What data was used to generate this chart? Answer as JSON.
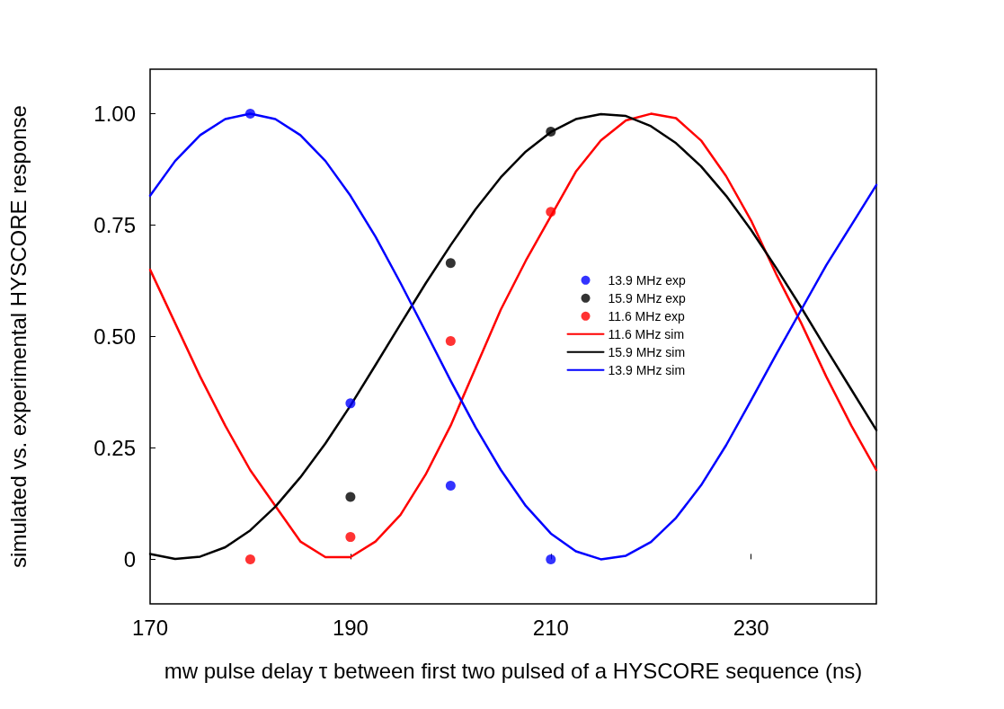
{
  "chart_data": {
    "type": "line",
    "xlabel": "mw pulse delay τ between first two pulsed of a HYSCORE sequence (ns)",
    "ylabel": "simulated vs. experimental HYSCORE response",
    "xlim": [
      170,
      242.5
    ],
    "xticks": [
      170,
      190,
      210,
      230
    ],
    "ylim": [
      -0.1,
      1.1
    ],
    "yticks": [
      0,
      {
        "value": 0.25,
        "label": "0.25"
      },
      {
        "value": 0.5,
        "label": "0.50"
      },
      {
        "value": 0.75,
        "label": "0.75"
      },
      {
        "value": 1,
        "label": "1.00"
      }
    ],
    "grid": false,
    "legend": "right",
    "line_style": "solid",
    "series": [
      {
        "name": "13.9 MHz exp",
        "type": "scatter",
        "marker": "circle",
        "color": "#0000ff",
        "x": [
          180,
          190,
          200,
          210
        ],
        "values": [
          1.0,
          0.35,
          0.165,
          0.0
        ]
      },
      {
        "name": "15.9 MHz exp",
        "type": "scatter",
        "marker": "circle",
        "color": "#000000",
        "x": [
          190,
          200,
          210
        ],
        "values": [
          0.14,
          0.665,
          0.96
        ]
      },
      {
        "name": "11.6 MHz exp",
        "type": "scatter",
        "marker": "circle",
        "color": "#ff0000",
        "x": [
          180,
          190,
          200,
          210
        ],
        "values": [
          0.0,
          0.05,
          0.49,
          0.78
        ]
      },
      {
        "name": "11.6 MHz sim",
        "color": "#ff0000",
        "x": [
          170,
          172.5,
          175,
          177.5,
          180,
          182.5,
          185,
          187.5,
          190,
          192.5,
          195,
          197.5,
          200,
          202.5,
          205,
          207.5,
          210,
          212.5,
          215,
          217.5,
          220,
          222.5,
          225,
          227.5,
          230,
          232.5,
          235,
          237.5,
          240,
          242.5
        ],
        "values": [
          0.65,
          0.53,
          0.41,
          0.3,
          0.2,
          0.12,
          0.04,
          0.005,
          0.005,
          0.04,
          0.1,
          0.19,
          0.3,
          0.43,
          0.56,
          0.67,
          0.77,
          0.87,
          0.94,
          0.985,
          1.0,
          0.99,
          0.94,
          0.86,
          0.76,
          0.64,
          0.53,
          0.41,
          0.3,
          0.2
        ]
      },
      {
        "name": "15.9 MHz sim",
        "color": "#000000",
        "x": [
          170,
          172.5,
          175,
          177.5,
          180,
          182.5,
          185,
          187.5,
          190,
          192.5,
          195,
          197.5,
          200,
          202.5,
          205,
          207.5,
          210,
          212.5,
          215,
          217.5,
          220,
          222.5,
          225,
          227.5,
          230,
          232.5,
          235,
          237.5,
          240,
          242.5
        ],
        "values": [
          0.012,
          0.001,
          0.006,
          0.027,
          0.065,
          0.118,
          0.184,
          0.26,
          0.345,
          0.436,
          0.528,
          0.619,
          0.705,
          0.786,
          0.857,
          0.915,
          0.959,
          0.988,
          0.999,
          0.995,
          0.972,
          0.934,
          0.882,
          0.816,
          0.739,
          0.654,
          0.565,
          0.472,
          0.381,
          0.29
        ]
      },
      {
        "name": "13.9 MHz sim",
        "color": "#0000ff",
        "x": [
          170,
          172.5,
          175,
          177.5,
          180,
          182.5,
          185,
          187.5,
          190,
          192.5,
          195,
          197.5,
          200,
          202.5,
          205,
          207.5,
          210,
          212.5,
          215,
          217.5,
          220,
          222.5,
          225,
          227.5,
          230,
          232.5,
          235,
          237.5,
          240,
          242.5
        ],
        "values": [
          0.816,
          0.894,
          0.952,
          0.988,
          1.0,
          0.988,
          0.952,
          0.894,
          0.816,
          0.724,
          0.62,
          0.511,
          0.401,
          0.296,
          0.201,
          0.12,
          0.058,
          0.018,
          0.0,
          0.008,
          0.039,
          0.093,
          0.166,
          0.256,
          0.357,
          0.46,
          0.56,
          0.66,
          0.75,
          0.84
        ]
      }
    ]
  }
}
